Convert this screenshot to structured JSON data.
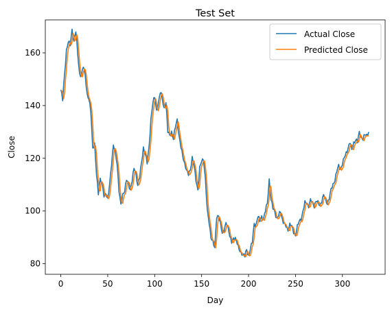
{
  "chart_data": {
    "type": "line",
    "title": "Test Set",
    "xlabel": "Day",
    "ylabel": "Close",
    "xlim": [
      -16.5,
      345.5
    ],
    "ylim": [
      76,
      172.5
    ],
    "xticks": [
      0,
      50,
      100,
      150,
      200,
      250,
      300
    ],
    "yticks": [
      80,
      100,
      120,
      140,
      160
    ],
    "grid": false,
    "legend": "top-right",
    "series": [
      {
        "name": "Actual Close",
        "color": "#1f77b4",
        "anchors": [
          [
            0,
            146
          ],
          [
            2,
            142
          ],
          [
            4,
            152
          ],
          [
            6,
            161
          ],
          [
            8,
            164
          ],
          [
            10,
            163
          ],
          [
            12,
            169
          ],
          [
            14,
            164
          ],
          [
            16,
            168
          ],
          [
            18,
            160
          ],
          [
            20,
            152
          ],
          [
            22,
            151
          ],
          [
            24,
            155
          ],
          [
            26,
            152
          ],
          [
            28,
            144
          ],
          [
            30,
            142
          ],
          [
            32,
            138
          ],
          [
            34,
            124
          ],
          [
            36,
            125
          ],
          [
            38,
            114
          ],
          [
            40,
            107
          ],
          [
            42,
            112
          ],
          [
            44,
            110
          ],
          [
            46,
            106
          ],
          [
            48,
            107
          ],
          [
            50,
            104
          ],
          [
            52,
            110
          ],
          [
            54,
            118
          ],
          [
            56,
            125
          ],
          [
            58,
            122
          ],
          [
            60,
            118
          ],
          [
            62,
            108
          ],
          [
            64,
            102
          ],
          [
            66,
            106
          ],
          [
            68,
            108
          ],
          [
            70,
            112
          ],
          [
            72,
            110
          ],
          [
            74,
            108
          ],
          [
            76,
            112
          ],
          [
            78,
            116
          ],
          [
            80,
            114
          ],
          [
            82,
            110
          ],
          [
            84,
            113
          ],
          [
            86,
            118
          ],
          [
            88,
            124
          ],
          [
            90,
            122
          ],
          [
            92,
            118
          ],
          [
            94,
            124
          ],
          [
            96,
            135
          ],
          [
            98,
            141
          ],
          [
            100,
            143
          ],
          [
            102,
            138
          ],
          [
            104,
            141
          ],
          [
            106,
            145
          ],
          [
            108,
            143
          ],
          [
            110,
            139
          ],
          [
            112,
            141
          ],
          [
            114,
            130
          ],
          [
            116,
            129
          ],
          [
            118,
            130
          ],
          [
            120,
            127
          ],
          [
            122,
            132
          ],
          [
            124,
            135
          ],
          [
            126,
            128
          ],
          [
            128,
            124
          ],
          [
            130,
            121
          ],
          [
            132,
            118
          ],
          [
            134,
            115
          ],
          [
            136,
            114
          ],
          [
            138,
            116
          ],
          [
            140,
            120
          ],
          [
            142,
            117
          ],
          [
            144,
            112
          ],
          [
            146,
            108
          ],
          [
            148,
            116
          ],
          [
            150,
            119
          ],
          [
            152,
            120
          ],
          [
            154,
            112
          ],
          [
            156,
            100
          ],
          [
            158,
            96
          ],
          [
            160,
            90
          ],
          [
            162,
            88
          ],
          [
            164,
            86
          ],
          [
            166,
            98
          ],
          [
            168,
            98
          ],
          [
            170,
            95
          ],
          [
            172,
            92
          ],
          [
            174,
            93
          ],
          [
            176,
            95
          ],
          [
            178,
            94
          ],
          [
            180,
            91
          ],
          [
            182,
            88
          ],
          [
            184,
            89
          ],
          [
            186,
            90
          ],
          [
            188,
            88
          ],
          [
            190,
            85
          ],
          [
            192,
            84
          ],
          [
            194,
            84
          ],
          [
            196,
            83
          ],
          [
            198,
            85
          ],
          [
            200,
            83
          ],
          [
            202,
            86
          ],
          [
            204,
            88
          ],
          [
            206,
            95
          ],
          [
            208,
            95
          ],
          [
            210,
            98
          ],
          [
            212,
            96
          ],
          [
            214,
            98
          ],
          [
            216,
            97
          ],
          [
            218,
            100
          ],
          [
            220,
            103
          ],
          [
            222,
            112
          ],
          [
            224,
            104
          ],
          [
            226,
            101
          ],
          [
            228,
            100
          ],
          [
            230,
            97
          ],
          [
            232,
            98
          ],
          [
            234,
            100
          ],
          [
            236,
            97
          ],
          [
            238,
            95
          ],
          [
            240,
            94
          ],
          [
            242,
            93
          ],
          [
            244,
            95
          ],
          [
            246,
            94
          ],
          [
            248,
            92
          ],
          [
            250,
            91
          ],
          [
            252,
            94
          ],
          [
            254,
            96
          ],
          [
            256,
            97
          ],
          [
            258,
            100
          ],
          [
            260,
            103
          ],
          [
            262,
            103
          ],
          [
            264,
            102
          ],
          [
            266,
            104
          ],
          [
            268,
            103
          ],
          [
            270,
            102
          ],
          [
            272,
            104
          ],
          [
            274,
            103
          ],
          [
            276,
            102
          ],
          [
            278,
            104
          ],
          [
            280,
            106
          ],
          [
            282,
            104
          ],
          [
            284,
            103
          ],
          [
            286,
            105
          ],
          [
            288,
            108
          ],
          [
            290,
            110
          ],
          [
            292,
            112
          ],
          [
            294,
            115
          ],
          [
            296,
            117
          ],
          [
            298,
            116
          ],
          [
            300,
            118
          ],
          [
            302,
            120
          ],
          [
            304,
            122
          ],
          [
            306,
            124
          ],
          [
            308,
            126
          ],
          [
            310,
            123
          ],
          [
            312,
            126
          ],
          [
            314,
            127
          ],
          [
            316,
            126
          ],
          [
            318,
            130
          ],
          [
            320,
            128
          ],
          [
            322,
            127
          ],
          [
            324,
            129
          ],
          [
            326,
            129
          ],
          [
            328,
            130
          ]
        ]
      },
      {
        "name": "Predicted Close",
        "color": "#ff7f0e",
        "lag": 1.4,
        "offset": -0.4
      }
    ]
  }
}
